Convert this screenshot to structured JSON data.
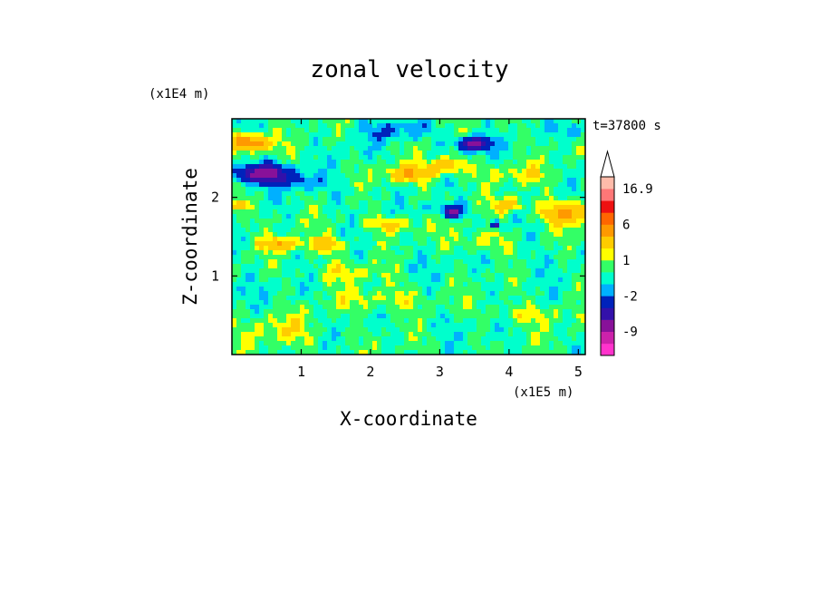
{
  "chart_data": {
    "type": "heatmap",
    "title": "zonal velocity",
    "xlabel": "X-coordinate",
    "ylabel": "Z-coordinate",
    "x_scale_label": "(x1E5 m)",
    "y_scale_label": "(x1E4 m)",
    "time_label": "t=37800 s",
    "xlim": [
      0,
      5.1
    ],
    "ylim": [
      0,
      3.0
    ],
    "x_ticks": [
      1,
      2,
      3,
      4,
      5
    ],
    "x_tick_labels": [
      "1",
      "2",
      "3",
      "4",
      "5"
    ],
    "y_ticks": [
      1,
      2
    ],
    "y_tick_labels": [
      "1",
      "2"
    ],
    "colorbar": {
      "levels_bottom_to_top": [
        -14,
        -11,
        -9,
        -6,
        -4,
        -2,
        -1,
        0,
        1,
        2,
        4,
        6,
        9,
        12,
        16.9
      ],
      "colors_bottom_to_top": [
        "#ff33cc",
        "#cc22aa",
        "#881199",
        "#3311aa",
        "#0022bb",
        "#00b0ff",
        "#00ffcc",
        "#33ff66",
        "#ffff00",
        "#ffcc00",
        "#ff9900",
        "#ff6600",
        "#ee1111",
        "#ff7777",
        "#ffbbaa"
      ],
      "tick_labels": [
        "16.9",
        "6",
        "1",
        "-2",
        "-9"
      ],
      "tick_values": [
        16.9,
        6,
        1,
        -2,
        -9
      ],
      "overflow_arrow": "top"
    },
    "features": [
      {
        "x": 0.45,
        "z": 2.3,
        "rx": 0.38,
        "rz": 0.12,
        "value": -8
      },
      {
        "x": 3.5,
        "z": 2.68,
        "rx": 0.24,
        "rz": 0.09,
        "value": -7
      },
      {
        "x": 3.2,
        "z": 1.8,
        "rx": 0.12,
        "rz": 0.05,
        "value": -6
      },
      {
        "x": 3.8,
        "z": 1.65,
        "rx": 0.06,
        "rz": 0.05,
        "value": -6
      },
      {
        "x": 0.25,
        "z": 2.7,
        "rx": 0.3,
        "rz": 0.1,
        "value": 6
      },
      {
        "x": 4.85,
        "z": 1.8,
        "rx": 0.35,
        "rz": 0.14,
        "value": 5
      },
      {
        "x": 0.7,
        "z": 1.4,
        "rx": 0.25,
        "rz": 0.08,
        "value": 4
      },
      {
        "x": 2.55,
        "z": 2.3,
        "rx": 0.3,
        "rz": 0.1,
        "value": 4
      },
      {
        "x": 3.1,
        "z": 2.4,
        "rx": 0.25,
        "rz": 0.1,
        "value": 4
      },
      {
        "x": 1.35,
        "z": 1.4,
        "rx": 0.3,
        "rz": 0.1,
        "value": 3
      },
      {
        "x": 2.3,
        "z": 1.65,
        "rx": 0.28,
        "rz": 0.09,
        "value": 3
      },
      {
        "x": 4.0,
        "z": 1.9,
        "rx": 0.22,
        "rz": 0.09,
        "value": 3
      },
      {
        "x": 0.1,
        "z": 1.9,
        "rx": 0.12,
        "rz": 0.07,
        "value": 4
      },
      {
        "x": 1.0,
        "z": 2.2,
        "rx": 0.3,
        "rz": 0.1,
        "value": -2
      },
      {
        "x": 2.4,
        "z": 2.85,
        "rx": 0.5,
        "rz": 0.12,
        "value": -2
      },
      {
        "x": 3.1,
        "z": 1.85,
        "rx": 0.3,
        "rz": 0.09,
        "value": -2
      },
      {
        "x": 4.9,
        "z": 2.85,
        "rx": 0.2,
        "rz": 0.1,
        "value": -2
      },
      {
        "x": 1.6,
        "z": 2.0,
        "rx": 0.5,
        "rz": 0.15,
        "value": -0.5
      },
      {
        "x": 2.8,
        "z": 1.2,
        "rx": 0.6,
        "rz": 0.15,
        "value": -0.5
      },
      {
        "x": 4.5,
        "z": 1.2,
        "rx": 0.6,
        "rz": 0.2,
        "value": -0.5
      },
      {
        "x": 0.8,
        "z": 0.8,
        "rx": 0.6,
        "rz": 0.15,
        "value": -0.5
      },
      {
        "x": 3.3,
        "z": 0.4,
        "rx": 0.7,
        "rz": 0.12,
        "value": -0.5
      },
      {
        "x": 1.8,
        "z": 2.6,
        "rx": 0.4,
        "rz": 0.1,
        "value": -0.5
      },
      {
        "x": 0.7,
        "z": 0.3,
        "rx": 0.5,
        "rz": 0.2,
        "value": 1.5
      },
      {
        "x": 2.1,
        "z": 0.7,
        "rx": 0.7,
        "rz": 0.15,
        "value": 1.5
      },
      {
        "x": 4.2,
        "z": 0.5,
        "rx": 0.6,
        "rz": 0.12,
        "value": 1.5
      },
      {
        "x": 3.6,
        "z": 1.45,
        "rx": 0.4,
        "rz": 0.15,
        "value": 1.5
      },
      {
        "x": 1.7,
        "z": 1.05,
        "rx": 0.5,
        "rz": 0.12,
        "value": 1.5
      },
      {
        "x": 4.1,
        "z": 2.3,
        "rx": 0.5,
        "rz": 0.12,
        "value": 1.5
      }
    ]
  }
}
